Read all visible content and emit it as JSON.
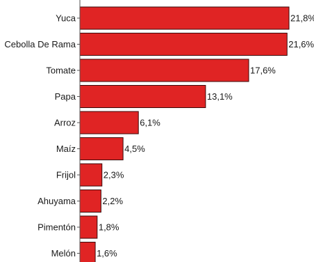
{
  "chart_data": {
    "type": "bar",
    "orientation": "horizontal",
    "categories": [
      "Yuca",
      "Cebolla De Rama",
      "Tomate",
      "Papa",
      "Arroz",
      "Maíz",
      "Frijol",
      "Ahuyama",
      "Pimentón",
      "Melón"
    ],
    "values": [
      21.8,
      21.6,
      17.6,
      13.1,
      6.1,
      4.5,
      2.3,
      2.2,
      1.8,
      1.6
    ],
    "value_labels": [
      "21,8%",
      "21,6%",
      "17,6%",
      "13,1%",
      "6,1%",
      "4,5%",
      "2,3%",
      "2,2%",
      "1,8%",
      "1,6%"
    ],
    "unit": "%",
    "xlim": [
      0,
      21.8
    ],
    "grid": false,
    "legend": "none",
    "bar_color": "#e02424",
    "bar_edge_color": "#3a0a0a"
  }
}
